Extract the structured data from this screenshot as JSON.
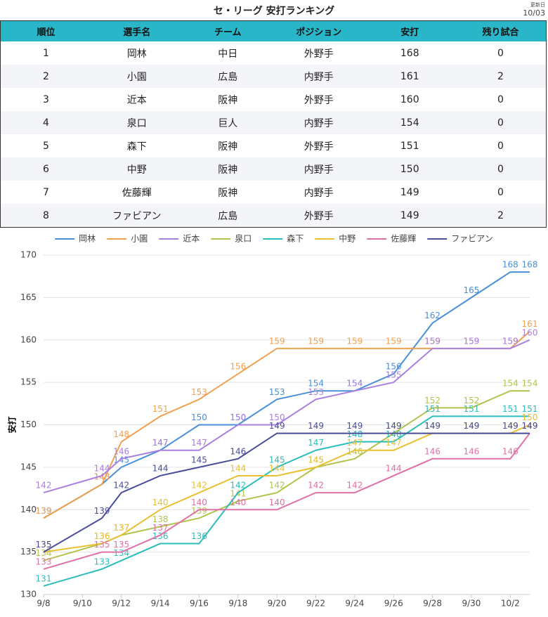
{
  "header": {
    "title": "セ・リーグ 安打ランキング",
    "updated_label": "更新日",
    "updated_date": "10/03"
  },
  "table": {
    "columns": [
      "順位",
      "選手名",
      "チーム",
      "ポジション",
      "安打",
      "残り試合"
    ],
    "rows": [
      [
        1,
        "岡林",
        "中日",
        "外野手",
        168,
        0
      ],
      [
        2,
        "小園",
        "広島",
        "内野手",
        161,
        2
      ],
      [
        3,
        "近本",
        "阪神",
        "外野手",
        160,
        0
      ],
      [
        4,
        "泉口",
        "巨人",
        "内野手",
        154,
        0
      ],
      [
        5,
        "森下",
        "阪神",
        "外野手",
        151,
        0
      ],
      [
        6,
        "中野",
        "阪神",
        "内野手",
        150,
        0
      ],
      [
        7,
        "佐藤輝",
        "阪神",
        "内野手",
        149,
        0
      ],
      [
        8,
        "ファビアン",
        "広島",
        "外野手",
        149,
        2
      ]
    ]
  },
  "chart_data": {
    "type": "line",
    "y_label": "安打",
    "x": [
      "9/8",
      "9/11",
      "9/12",
      "9/14",
      "9/16",
      "9/18",
      "9/20",
      "9/22",
      "9/24",
      "9/26",
      "9/28",
      "9/30",
      "10/2",
      "10/3"
    ],
    "xlim": [
      "9/8",
      "10/3"
    ],
    "xticks": [
      "9/8",
      "9/10",
      "9/12",
      "9/14",
      "9/16",
      "9/18",
      "9/20",
      "9/22",
      "9/24",
      "9/26",
      "9/28",
      "9/30",
      "10/2"
    ],
    "ylim": [
      130,
      170
    ],
    "yticks": [
      130,
      135,
      140,
      145,
      150,
      155,
      160,
      165,
      170
    ],
    "grid": true,
    "legend": "top",
    "series": [
      {
        "name": "岡林",
        "color": "#4a90d9",
        "values": [
          139,
          143,
          145,
          147,
          150,
          150,
          153,
          154,
          154,
          156,
          162,
          165,
          168,
          168
        ]
      },
      {
        "name": "小園",
        "color": "#f0a050",
        "values": [
          139,
          143,
          148,
          151,
          153,
          156,
          159,
          159,
          159,
          159,
          159,
          159,
          159,
          161
        ]
      },
      {
        "name": "近本",
        "color": "#a97fe0",
        "values": [
          142,
          144,
          146,
          147,
          147,
          150,
          150,
          153,
          154,
          155,
          159,
          159,
          159,
          160
        ]
      },
      {
        "name": "泉口",
        "color": "#b3c24a",
        "values": [
          134,
          136,
          137,
          138,
          139,
          141,
          142,
          145,
          146,
          149,
          152,
          152,
          154,
          154
        ]
      },
      {
        "name": "森下",
        "color": "#2bbcbc",
        "values": [
          131,
          133,
          134,
          136,
          136,
          142,
          145,
          147,
          148,
          148,
          151,
          151,
          151,
          151
        ]
      },
      {
        "name": "中野",
        "color": "#e8c030",
        "values": [
          135,
          136,
          137,
          140,
          142,
          144,
          144,
          145,
          147,
          147,
          149,
          149,
          149,
          150
        ]
      },
      {
        "name": "佐藤輝",
        "color": "#e070a8",
        "values": [
          133,
          135,
          135,
          137,
          140,
          140,
          140,
          142,
          142,
          144,
          146,
          146,
          146,
          149
        ]
      },
      {
        "name": "ファビアン",
        "color": "#4a4e9a",
        "values": [
          135,
          139,
          142,
          144,
          145,
          146,
          149,
          149,
          149,
          149,
          149,
          149,
          149,
          149
        ]
      }
    ]
  }
}
